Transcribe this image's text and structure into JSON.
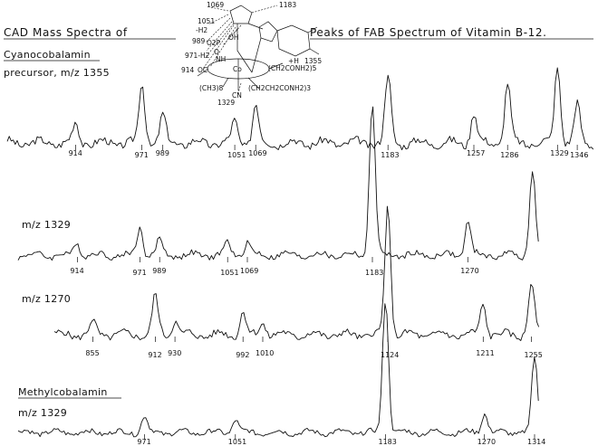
{
  "title_left": "CAD Mass Spectra of",
  "title_right": "Peaks of FAB Spectrum of Vitamin B-12.",
  "structure": {
    "labels": [
      "1069",
      "1183",
      "1051",
      "-H2",
      "OH",
      "O2P",
      "989",
      "O",
      "971-H2",
      "NH",
      "914",
      "OC",
      "Co",
      "+H",
      "1355",
      "(CH2CONH2)5",
      "(CH3)8",
      "CN",
      "(CH2CH2CONH2)3",
      "1329"
    ]
  },
  "chart_data": [
    {
      "type": "line",
      "label_line1": "Cyanocobalamin",
      "label_line2": "precursor, m/z 1355",
      "tick_labels": [
        "914",
        "971",
        "989",
        "1051",
        "1069",
        "1183",
        "1257",
        "1286",
        "1329",
        "1346"
      ],
      "peaks": [
        {
          "mz": 914,
          "rel": 0.18
        },
        {
          "mz": 971,
          "rel": 0.55
        },
        {
          "mz": 989,
          "rel": 0.25
        },
        {
          "mz": 1051,
          "rel": 0.2
        },
        {
          "mz": 1069,
          "rel": 0.35
        },
        {
          "mz": 1183,
          "rel": 0.62
        },
        {
          "mz": 1257,
          "rel": 0.28
        },
        {
          "mz": 1286,
          "rel": 0.55
        },
        {
          "mz": 1329,
          "rel": 0.72
        },
        {
          "mz": 1346,
          "rel": 0.35
        }
      ]
    },
    {
      "type": "line",
      "label": "m/z 1329",
      "tick_labels": [
        "914",
        "971",
        "989",
        "1051",
        "1069",
        "1183",
        "1270"
      ],
      "peaks": [
        {
          "mz": 914,
          "rel": 0.08
        },
        {
          "mz": 971,
          "rel": 0.18
        },
        {
          "mz": 989,
          "rel": 0.1
        },
        {
          "mz": 1051,
          "rel": 0.08
        },
        {
          "mz": 1069,
          "rel": 0.09
        },
        {
          "mz": 1183,
          "rel": 1.0
        },
        {
          "mz": 1270,
          "rel": 0.22
        },
        {
          "mz": 1329,
          "rel": 0.55
        }
      ]
    },
    {
      "type": "line",
      "label": "m/z 1270",
      "tick_labels": [
        "855",
        "912",
        "930",
        "992",
        "1010",
        "1124",
        "1211",
        "1255"
      ],
      "peaks": [
        {
          "mz": 855,
          "rel": 0.1
        },
        {
          "mz": 912,
          "rel": 0.3
        },
        {
          "mz": 930,
          "rel": 0.12
        },
        {
          "mz": 992,
          "rel": 0.18
        },
        {
          "mz": 1010,
          "rel": 0.1
        },
        {
          "mz": 1124,
          "rel": 1.0
        },
        {
          "mz": 1211,
          "rel": 0.25
        },
        {
          "mz": 1255,
          "rel": 0.4
        }
      ]
    },
    {
      "type": "line",
      "label_line1": "Methylcobalamin",
      "label_line2": "m/z 1329",
      "tick_labels": [
        "971",
        "1051",
        "1183",
        "1270",
        "1314"
      ],
      "peaks": [
        {
          "mz": 971,
          "rel": 0.12
        },
        {
          "mz": 1051,
          "rel": 0.1
        },
        {
          "mz": 1183,
          "rel": 1.0
        },
        {
          "mz": 1270,
          "rel": 0.15
        },
        {
          "mz": 1314,
          "rel": 0.55
        }
      ]
    }
  ]
}
